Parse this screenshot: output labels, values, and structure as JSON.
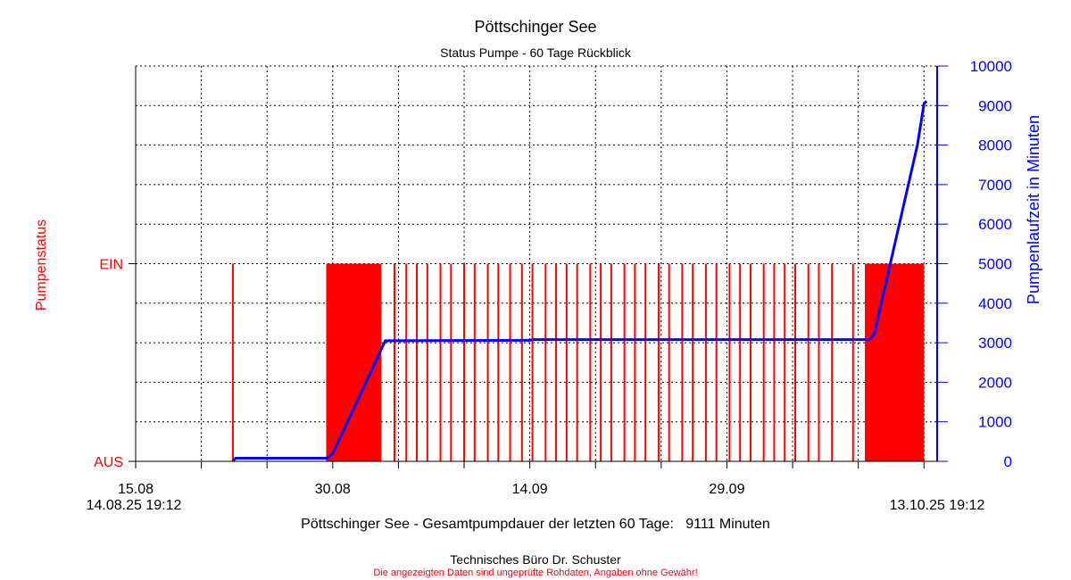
{
  "chart_data": {
    "type": "line",
    "title": "Pöttschinger See",
    "subtitle": "Status Pumpe - 60 Tage Rückblick",
    "ylabel_left": "Pumpenstatus",
    "ylabel_right": "Pumpenlaufzeit in Minuten",
    "left_axis": {
      "categories": [
        "AUS",
        "EIN"
      ],
      "level_fraction_on": 0.5
    },
    "right_axis": {
      "range": [
        0,
        10000
      ],
      "ticks": [
        0,
        1000,
        2000,
        3000,
        4000,
        5000,
        6000,
        7000,
        8000,
        9000,
        10000
      ]
    },
    "x_axis": {
      "range_days": [
        0,
        61
      ],
      "tick_labels": [
        {
          "day": 0,
          "label": "15.08"
        },
        {
          "day": 15,
          "label": "30.08"
        },
        {
          "day": 30,
          "label": "14.09"
        },
        {
          "day": 45,
          "label": "29.09"
        }
      ],
      "start_label": "14.08.25 19:12",
      "end_label": "13.10.25 19:12"
    },
    "grid": true,
    "series": [
      {
        "name": "Pumpenlaufzeit",
        "axis": "right",
        "color": "#0000ff",
        "points": [
          [
            7.4,
            0
          ],
          [
            7.6,
            80
          ],
          [
            14.6,
            80
          ],
          [
            15.0,
            200
          ],
          [
            19.0,
            3050
          ],
          [
            30.0,
            3060
          ],
          [
            30.2,
            3080
          ],
          [
            55.8,
            3080
          ],
          [
            56.2,
            3200
          ],
          [
            59.5,
            8000
          ],
          [
            60.0,
            9050
          ],
          [
            60.2,
            9111
          ]
        ]
      },
      {
        "name": "Pumpenstatus",
        "axis": "left",
        "color": "#ff0000",
        "on_blocks": [
          [
            14.5,
            18.7
          ],
          [
            55.5,
            60.0
          ]
        ],
        "on_spikes": [
          7.4,
          16.4,
          17.2,
          17.8,
          19.7,
          20.6,
          21.4,
          22.2,
          23.2,
          24.0,
          25.0,
          25.8,
          26.8,
          27.6,
          28.5,
          29.4,
          30.2,
          31.2,
          32.0,
          32.8,
          33.6,
          34.6,
          35.4,
          36.2,
          37.2,
          38.0,
          38.8,
          39.8,
          40.6,
          41.6,
          42.4,
          43.4,
          44.2,
          45.2,
          46.0,
          46.8,
          47.8,
          48.6,
          49.4,
          50.2,
          51.2,
          52.0,
          53.0,
          54.6
        ]
      }
    ],
    "footer_summary": "Pöttschinger See - Gesamtpumpdauer der letzten 60 Tage:   9111 Minuten",
    "credit": "Technisches Büro Dr. Schuster",
    "disclaimer": "Die angezeigten Daten sind ungeprüfte Rohdaten, Angaben ohne Gewähr!",
    "colors": {
      "status": "#ff0000",
      "runtime": "#0000ff",
      "axis": "#000000",
      "grid": "#000000"
    }
  }
}
